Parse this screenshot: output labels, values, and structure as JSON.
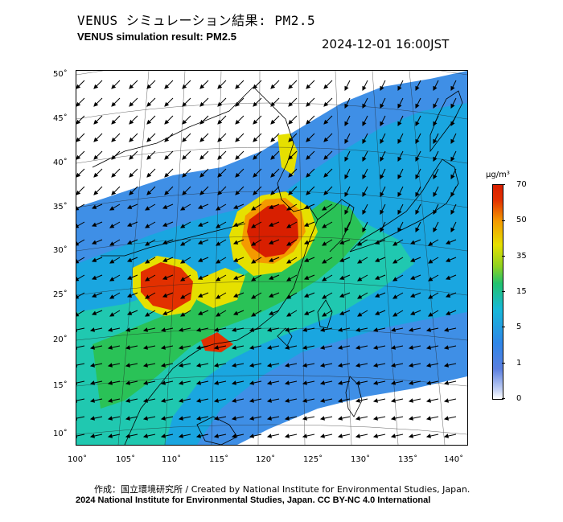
{
  "header": {
    "title_jp": "VENUS シミュレーション結果: PM2.5",
    "title_en": "VENUS simulation result: PM2.5",
    "timestamp": "2024-12-01 16:00JST"
  },
  "map": {
    "lat_labels": [
      "50˚",
      "45˚",
      "40˚",
      "35˚",
      "30˚",
      "25˚",
      "20˚",
      "15˚",
      "10˚"
    ],
    "lon_labels": [
      "100˚",
      "105˚",
      "110˚",
      "115˚",
      "120˚",
      "125˚",
      "130˚",
      "135˚",
      "140˚"
    ],
    "region": "East Asia",
    "variable": "PM2.5 concentration with wind vectors"
  },
  "colorbar": {
    "unit": "µg/m³",
    "ticks": [
      "70",
      "50",
      "35",
      "15",
      "5",
      "1",
      "0"
    ],
    "colors": [
      "#ffffff",
      "#c7d4f5",
      "#5b7fe0",
      "#2f86e8",
      "#17b9d8",
      "#22c26e",
      "#8fd220",
      "#e6e000",
      "#f49a00",
      "#e23000",
      "#d81f00"
    ]
  },
  "footer": {
    "credit_line1": "作成：国立環境研究所 / Created by National Institute for Environmental Studies, Japan.",
    "credit_line2": "2024 National Institute for Environmental Studies, Japan. CC BY-NC 4.0 International"
  }
}
